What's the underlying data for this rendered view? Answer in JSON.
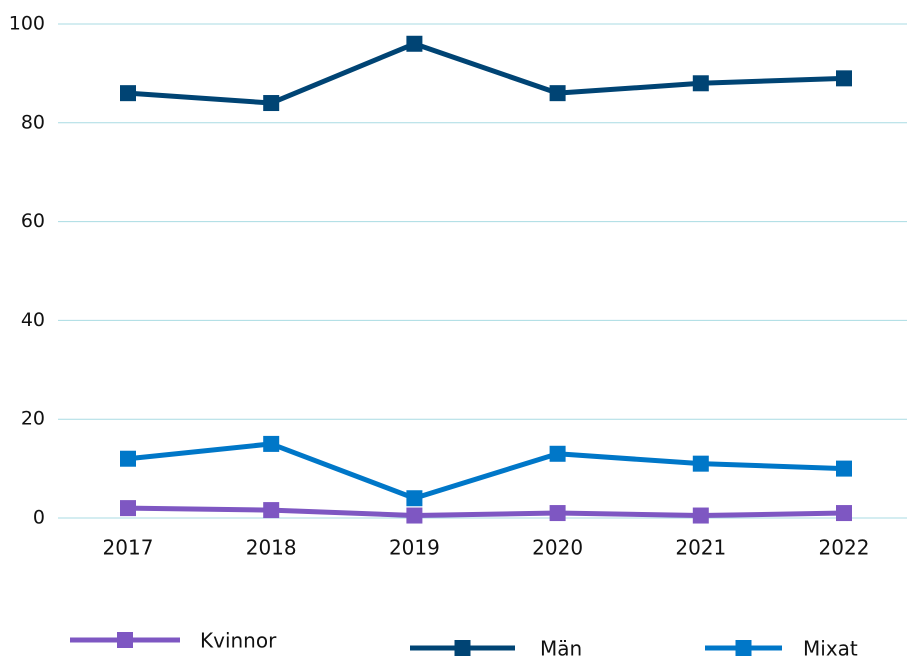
{
  "chart_data": {
    "type": "line",
    "x": [
      2017,
      2018,
      2019,
      2020,
      2021,
      2022
    ],
    "series": [
      {
        "name": "Kvinnor",
        "color": "#7e57c2",
        "values": [
          2,
          1.6,
          0.5,
          1,
          0.5,
          1
        ]
      },
      {
        "name": "Män",
        "color": "#004474",
        "values": [
          86,
          84,
          96,
          86,
          88,
          89
        ]
      },
      {
        "name": "Mixat",
        "color": "#0077c8",
        "values": [
          12,
          15,
          4,
          13,
          11,
          10
        ]
      }
    ],
    "ylim": [
      0,
      100
    ],
    "yticks": [
      0,
      20,
      40,
      60,
      80,
      100
    ],
    "grid": true,
    "legend": "bottom"
  }
}
